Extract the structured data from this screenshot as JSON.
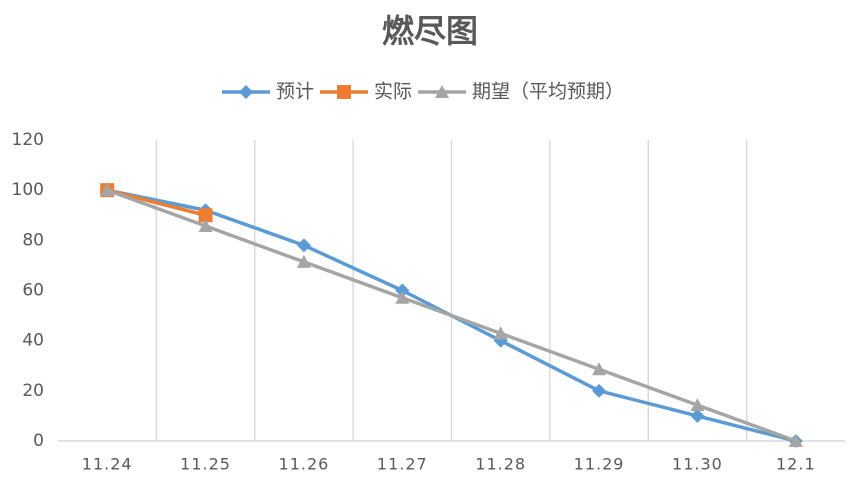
{
  "chart_data": {
    "type": "line",
    "title": "燃尽图",
    "categories": [
      "11.24",
      "11.25",
      "11.26",
      "11.27",
      "11.28",
      "11.29",
      "11.30",
      "12.1"
    ],
    "series": [
      {
        "name": "预计",
        "color": "#5b9bd5",
        "marker": "diamond",
        "values": [
          100,
          92,
          78,
          60,
          40,
          20,
          10,
          0
        ]
      },
      {
        "name": "实际",
        "color": "#ed7d31",
        "marker": "square",
        "values": [
          100,
          90,
          null,
          null,
          null,
          null,
          null,
          null
        ]
      },
      {
        "name": "期望（平均预期）",
        "color": "#a5a5a5",
        "marker": "triangle",
        "values": [
          100,
          85.7,
          71.4,
          57.1,
          42.9,
          28.6,
          14.3,
          0
        ]
      }
    ],
    "ylim": [
      0,
      120
    ],
    "yticks": [
      0,
      20,
      40,
      60,
      80,
      100,
      120
    ],
    "xgrid": true,
    "legend": "top"
  }
}
